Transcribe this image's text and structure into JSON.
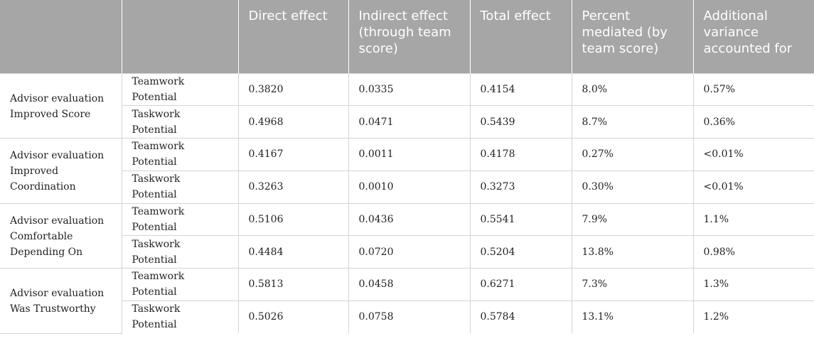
{
  "table": {
    "headers": [
      "",
      "",
      "Direct effect",
      "Indirect effect (through team score)",
      "Total effect",
      "Percent mediated (by team score)",
      "Additional variance accounted for"
    ],
    "groups": [
      {
        "label": "Advisor evaluation Improved Score",
        "rows": [
          {
            "potential": "Teamwork Potential",
            "direct": "0.3820",
            "indirect": "0.0335",
            "total": "0.4154",
            "percent": "8.0%",
            "variance": "0.57%"
          },
          {
            "potential": "Taskwork Potential",
            "direct": "0.4968",
            "indirect": "0.0471",
            "total": "0.5439",
            "percent": "8.7%",
            "variance": "0.36%"
          }
        ]
      },
      {
        "label": "Advisor evaluation Improved Coordination",
        "rows": [
          {
            "potential": "Teamwork Potential",
            "direct": "0.4167",
            "indirect": "0.0011",
            "total": "0.4178",
            "percent": "0.27%",
            "variance": "<0.01%"
          },
          {
            "potential": "Taskwork Potential",
            "direct": "0.3263",
            "indirect": "0.0010",
            "total": "0.3273",
            "percent": "0.30%",
            "variance": "<0.01%"
          }
        ]
      },
      {
        "label": "Advisor evaluation Comfortable Depending On",
        "rows": [
          {
            "potential": "Teamwork Potential",
            "direct": "0.5106",
            "indirect": "0.0436",
            "total": "0.5541",
            "percent": "7.9%",
            "variance": "1.1%"
          },
          {
            "potential": "Taskwork Potential",
            "direct": "0.4484",
            "indirect": "0.0720",
            "total": "0.5204",
            "percent": "13.8%",
            "variance": "0.98%"
          }
        ]
      },
      {
        "label": "Advisor evaluation Was Trustworthy",
        "rows": [
          {
            "potential": "Teamwork Potential",
            "direct": "0.5813",
            "indirect": "0.0458",
            "total": "0.6271",
            "percent": "7.3%",
            "variance": "1.3%"
          },
          {
            "potential": "Taskwork Potential",
            "direct": "0.5026",
            "indirect": "0.0758",
            "total": "0.5784",
            "percent": "13.1%",
            "variance": "1.2%"
          }
        ]
      }
    ],
    "colors": {
      "header_background": "#a6a6a6",
      "header_text": "#ffffff",
      "grid_line": "#d4d4d4"
    }
  }
}
